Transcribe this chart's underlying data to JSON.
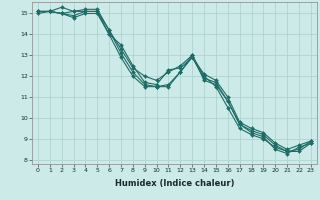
{
  "title": "",
  "xlabel": "Humidex (Indice chaleur)",
  "ylabel": "",
  "xlim": [
    -0.5,
    23.5
  ],
  "ylim": [
    7.8,
    15.55
  ],
  "xticks": [
    0,
    1,
    2,
    3,
    4,
    5,
    6,
    7,
    8,
    9,
    10,
    11,
    12,
    13,
    14,
    15,
    16,
    17,
    18,
    19,
    20,
    21,
    22,
    23
  ],
  "yticks": [
    8,
    9,
    10,
    11,
    12,
    13,
    14,
    15
  ],
  "background_color": "#cceae8",
  "grid_color": "#aacfcd",
  "line_color": "#1f6b65",
  "lines": [
    [
      15.1,
      15.1,
      15.3,
      15.1,
      15.1,
      15.1,
      14.0,
      13.5,
      12.5,
      11.7,
      11.6,
      12.3,
      12.4,
      12.9,
      12.1,
      11.8,
      11.0,
      9.8,
      9.5,
      9.3,
      8.8,
      8.5,
      8.7,
      8.9
    ],
    [
      15.1,
      15.1,
      15.0,
      15.1,
      15.2,
      15.2,
      14.2,
      13.3,
      12.4,
      12.0,
      11.8,
      12.2,
      12.5,
      13.0,
      12.0,
      11.5,
      10.5,
      9.5,
      9.2,
      9.0,
      8.6,
      8.4,
      8.5,
      8.9
    ],
    [
      15.1,
      15.1,
      15.0,
      14.9,
      15.1,
      15.1,
      14.2,
      13.1,
      12.2,
      11.6,
      11.5,
      11.6,
      12.2,
      12.9,
      11.9,
      11.7,
      10.8,
      9.7,
      9.4,
      9.2,
      8.7,
      8.4,
      8.4,
      8.8
    ],
    [
      15.0,
      15.1,
      15.0,
      14.8,
      15.0,
      15.0,
      14.0,
      12.9,
      12.0,
      11.5,
      11.5,
      11.5,
      12.2,
      13.0,
      11.8,
      11.6,
      10.8,
      9.7,
      9.3,
      9.1,
      8.5,
      8.3,
      8.6,
      8.8
    ]
  ]
}
